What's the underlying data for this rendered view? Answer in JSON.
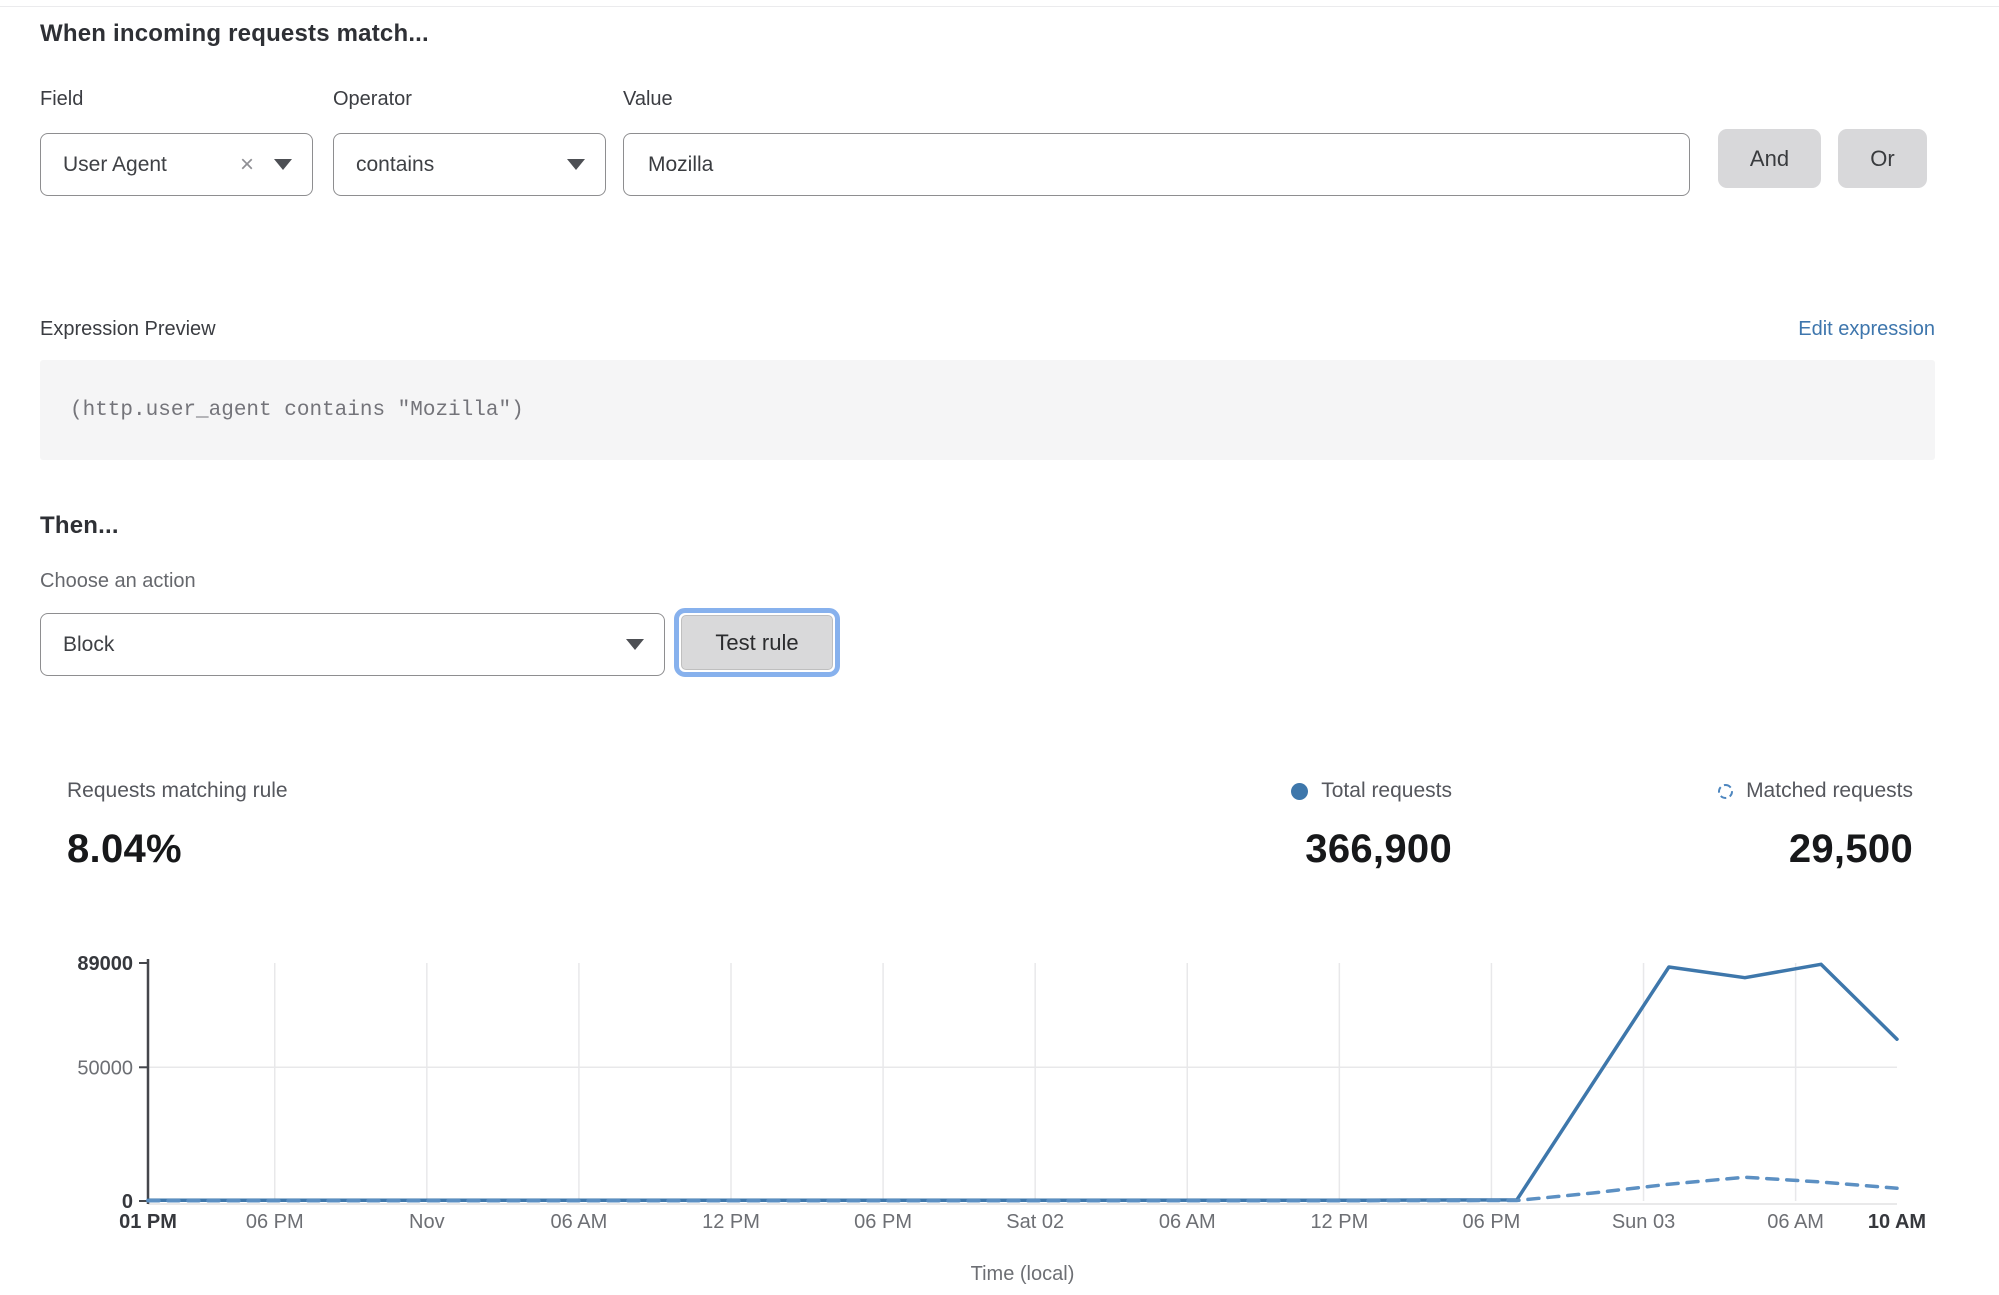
{
  "header": {
    "title": "When incoming requests match..."
  },
  "match_form": {
    "field": {
      "label": "Field",
      "value": "User Agent",
      "clear_icon": "×"
    },
    "operator": {
      "label": "Operator",
      "value": "contains"
    },
    "value": {
      "label": "Value",
      "value": "Mozilla"
    },
    "and_label": "And",
    "or_label": "Or"
  },
  "expression": {
    "preview_label": "Expression Preview",
    "edit_link": "Edit expression",
    "code": "(http.user_agent contains \"Mozilla\")"
  },
  "action": {
    "heading": "Then...",
    "choose_label": "Choose an action",
    "selected": "Block",
    "test_button": "Test rule"
  },
  "stats": {
    "matching": {
      "label": "Requests matching rule",
      "value": "8.04%"
    },
    "total": {
      "label": "Total requests",
      "value": "366,900"
    },
    "matched": {
      "label": "Matched requests",
      "value": "29,500"
    }
  },
  "colors": {
    "accent_blue": "#3e76ad",
    "line_solid": "#3e77ab",
    "line_dashed": "#5c90c3",
    "focus_ring": "#87b1ed"
  },
  "chart_data": {
    "type": "line",
    "title": "",
    "xlabel": "Time (local)",
    "ylabel": "",
    "ylim": [
      0,
      89000
    ],
    "x_range_hours": [
      0,
      69
    ],
    "grid": "vertical-at-inner-ticks, horizontal-at-50000",
    "legend_position": "top-right-stats",
    "y_ticks": [
      {
        "value": 0,
        "label": "0",
        "bold": true
      },
      {
        "value": 50000,
        "label": "50000",
        "bold": false
      },
      {
        "value": 89000,
        "label": "89000",
        "bold": true
      }
    ],
    "x_ticks": [
      {
        "hour": 0,
        "label": "01 PM",
        "bold": true
      },
      {
        "hour": 5,
        "label": "06 PM",
        "bold": false
      },
      {
        "hour": 11,
        "label": "Nov",
        "bold": false
      },
      {
        "hour": 17,
        "label": "06 AM",
        "bold": false
      },
      {
        "hour": 23,
        "label": "12 PM",
        "bold": false
      },
      {
        "hour": 29,
        "label": "06 PM",
        "bold": false
      },
      {
        "hour": 35,
        "label": "Sat 02",
        "bold": false
      },
      {
        "hour": 41,
        "label": "06 AM",
        "bold": false
      },
      {
        "hour": 47,
        "label": "12 PM",
        "bold": false
      },
      {
        "hour": 53,
        "label": "06 PM",
        "bold": false
      },
      {
        "hour": 59,
        "label": "Sun 03",
        "bold": false
      },
      {
        "hour": 65,
        "label": "06 AM",
        "bold": false
      },
      {
        "hour": 69,
        "label": "10 AM",
        "bold": true
      }
    ],
    "series": [
      {
        "name": "Total requests",
        "style": "solid",
        "color": "#3e77ab",
        "points": [
          [
            0,
            300
          ],
          [
            6,
            300
          ],
          [
            12,
            300
          ],
          [
            18,
            300
          ],
          [
            24,
            300
          ],
          [
            30,
            300
          ],
          [
            36,
            300
          ],
          [
            42,
            300
          ],
          [
            48,
            300
          ],
          [
            54,
            400
          ],
          [
            57,
            44000
          ],
          [
            60,
            87500
          ],
          [
            63,
            83500
          ],
          [
            66,
            88500
          ],
          [
            69,
            60500
          ]
        ]
      },
      {
        "name": "Matched requests",
        "style": "dashed",
        "color": "#5c90c3",
        "points": [
          [
            0,
            100
          ],
          [
            6,
            100
          ],
          [
            12,
            100
          ],
          [
            18,
            100
          ],
          [
            24,
            100
          ],
          [
            30,
            100
          ],
          [
            36,
            100
          ],
          [
            42,
            100
          ],
          [
            48,
            100
          ],
          [
            54,
            200
          ],
          [
            57,
            3000
          ],
          [
            60,
            6300
          ],
          [
            63,
            8900
          ],
          [
            66,
            7100
          ],
          [
            69,
            4800
          ]
        ]
      }
    ]
  }
}
